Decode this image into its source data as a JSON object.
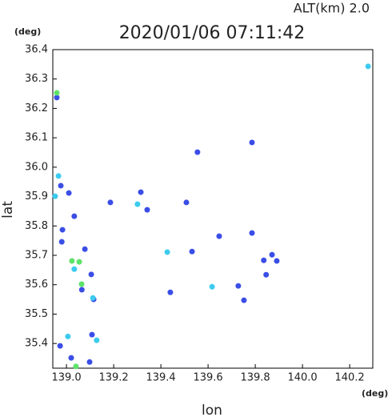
{
  "chart_data": {
    "type": "scatter",
    "title": "2020/01/06 07:11:42",
    "subtitle": "ALT(km) 2.0",
    "x_unit": "(deg)",
    "y_unit": "(deg)",
    "x_label": "lon",
    "y_label": "lat",
    "xlim": [
      138.942,
      140.298
    ],
    "ylim": [
      35.316,
      36.4
    ],
    "xticks": [
      {
        "value": 139,
        "label": "139.0"
      },
      139.2,
      139.4,
      139.6,
      139.8,
      {
        "value": 140,
        "label": "140.0"
      },
      140.2
    ],
    "yticks": [
      35.4,
      35.5,
      35.6,
      35.7,
      35.8,
      35.9,
      {
        "value": 36,
        "label": "36.0"
      },
      36.1,
      36.2,
      36.3,
      36.4
    ],
    "series": [
      {
        "color": "#3a4ee6",
        "x": [
          138.959,
          139.01,
          138.976,
          138.983,
          139.033,
          138.98,
          139.078,
          139.065,
          139.105,
          139.115,
          138.973,
          139.02,
          139.098,
          139.108,
          139.555,
          139.786,
          139.786,
          139.836,
          139.871,
          139.891,
          139.728,
          139.752,
          139.647,
          139.532,
          139.44,
          139.315,
          139.186,
          139.342,
          139.508,
          139.846
        ],
        "y": [
          36.237,
          35.912,
          35.937,
          35.787,
          35.833,
          35.746,
          35.721,
          35.583,
          35.635,
          35.55,
          35.392,
          35.351,
          35.337,
          35.43,
          36.051,
          36.084,
          35.776,
          35.683,
          35.702,
          35.681,
          35.596,
          35.547,
          35.765,
          35.713,
          35.574,
          35.915,
          35.88,
          35.855,
          35.88,
          35.634
        ]
      },
      {
        "color": "#3ccbef",
        "x": [
          140.278,
          139.006,
          139.128,
          139.427,
          139.033,
          138.952,
          138.966,
          139.301,
          139.617,
          139.112
        ],
        "y": [
          36.343,
          35.424,
          35.411,
          35.711,
          35.653,
          35.901,
          35.97,
          35.874,
          35.593,
          35.555
        ]
      },
      {
        "color": "#5ee36a",
        "x": [
          138.959,
          139.054,
          139.023,
          139.064,
          139.04
        ],
        "y": [
          36.253,
          35.678,
          35.681,
          35.602,
          35.322
        ]
      }
    ]
  }
}
